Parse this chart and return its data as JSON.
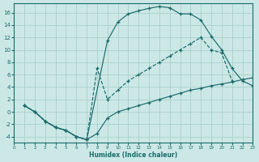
{
  "xlabel": "Humidex (Indice chaleur)",
  "background_color": "#cce8e6",
  "grid_color": "#a8d0cc",
  "line_color": "#1a6b6b",
  "xlim": [
    0,
    23
  ],
  "ylim": [
    -5,
    17.5
  ],
  "xticks": [
    0,
    1,
    2,
    3,
    4,
    5,
    6,
    7,
    8,
    9,
    10,
    11,
    12,
    13,
    14,
    15,
    16,
    17,
    18,
    19,
    20,
    21,
    22,
    23
  ],
  "yticks": [
    -4,
    -2,
    0,
    2,
    4,
    6,
    8,
    10,
    12,
    14,
    16
  ],
  "curve1_x": [
    1,
    2,
    3,
    4,
    5,
    6,
    7,
    9,
    10,
    11,
    12,
    13,
    14,
    15,
    16,
    17,
    18,
    19,
    20,
    21,
    22,
    23
  ],
  "curve1_y": [
    1,
    0,
    -1.5,
    -2.5,
    -3.0,
    -4.0,
    -4.5,
    11.5,
    14.5,
    15.8,
    16.3,
    16.7,
    17.0,
    16.8,
    15.8,
    15.8,
    14.8,
    12.2,
    10.0,
    7.0,
    5.0,
    4.2
  ],
  "curve2_x": [
    1,
    2,
    3,
    4,
    5,
    6,
    7,
    8,
    9,
    10,
    11,
    12,
    13,
    14,
    15,
    16,
    17,
    18,
    19,
    20,
    21
  ],
  "curve2_y": [
    1,
    0,
    -1.5,
    -2.5,
    -3.0,
    -4.0,
    -4.5,
    7.0,
    2.0,
    3.5,
    5.0,
    6.0,
    7.0,
    8.0,
    9.0,
    10.0,
    11.0,
    12.0,
    10.0,
    9.5,
    5.0
  ],
  "curve3_x": [
    1,
    2,
    3,
    4,
    5,
    6,
    7,
    8,
    9,
    10,
    11,
    12,
    13,
    14,
    15,
    16,
    17,
    18,
    19,
    20,
    21,
    22,
    23
  ],
  "curve3_y": [
    1,
    0,
    -1.5,
    -2.5,
    -3.0,
    -4.0,
    -4.5,
    -3.5,
    -1.0,
    0.0,
    0.5,
    1.0,
    1.5,
    2.0,
    2.5,
    3.0,
    3.5,
    3.8,
    4.2,
    4.5,
    4.8,
    5.2,
    5.5
  ]
}
